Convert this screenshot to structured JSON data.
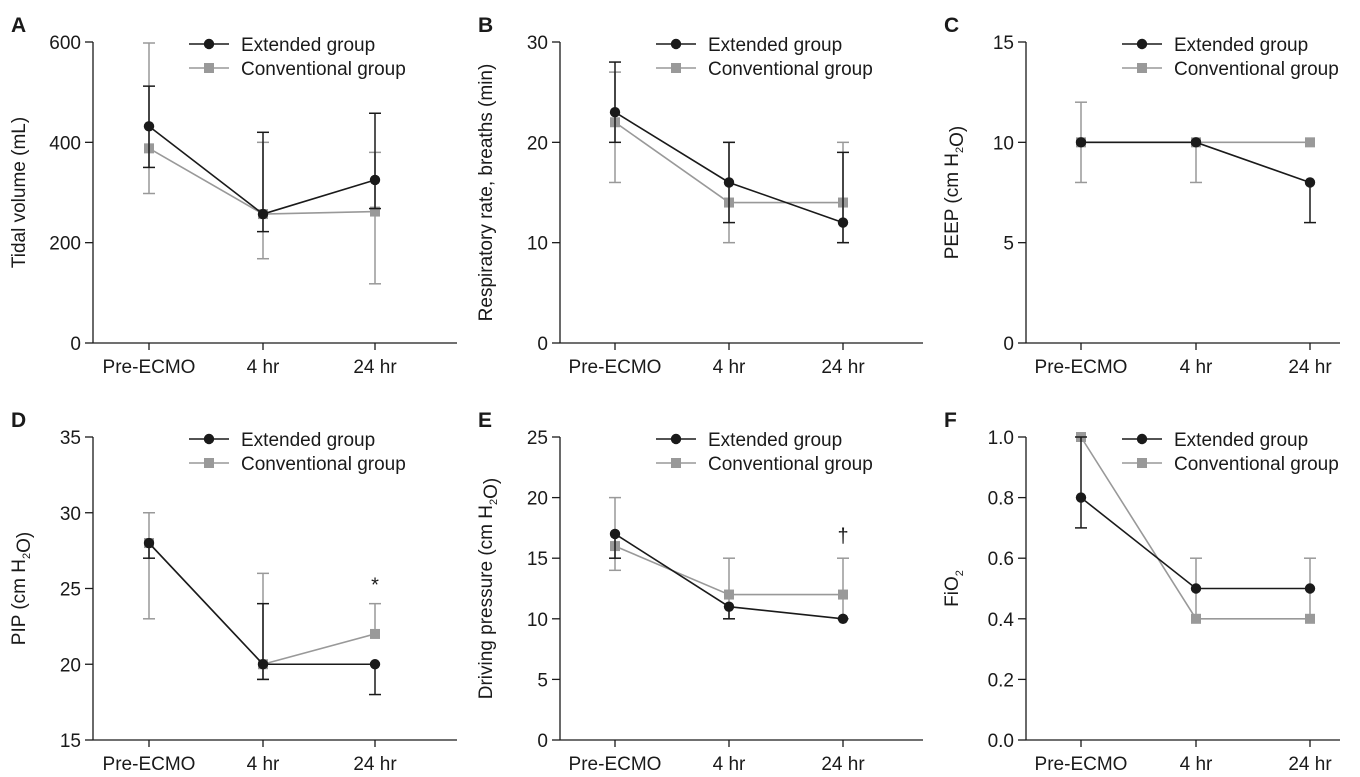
{
  "colors": {
    "extended": "#1a1a1a",
    "conventional": "#999999",
    "axis": "#1a1a1a"
  },
  "categories": [
    "Pre-ECMO",
    "4 hr",
    "24 hr"
  ],
  "legend": {
    "extended": "Extended group",
    "conventional": "Conventional group"
  },
  "chart_data": [
    {
      "type": "line",
      "panel": "A",
      "ylabel": "Tidal volume (mL)",
      "ylim": [
        0,
        600
      ],
      "yticks": [
        "0",
        "200",
        "400",
        "600"
      ],
      "categories": [
        "Pre-ECMO",
        "4 hr",
        "24 hr"
      ],
      "series": [
        {
          "name": "Extended group",
          "values": [
            432,
            257,
            325
          ],
          "err_low": [
            350,
            222,
            268
          ],
          "err_high": [
            512,
            420,
            458
          ]
        },
        {
          "name": "Conventional group",
          "values": [
            388,
            257,
            262
          ],
          "err_low": [
            298,
            168,
            118
          ],
          "err_high": [
            598,
            400,
            380
          ]
        }
      ],
      "annotations": []
    },
    {
      "type": "line",
      "panel": "B",
      "ylabel": "Respiratory rate, breaths (min)",
      "ylim": [
        0,
        30
      ],
      "yticks": [
        "0",
        "10",
        "20",
        "30"
      ],
      "categories": [
        "Pre-ECMO",
        "4 hr",
        "24 hr"
      ],
      "series": [
        {
          "name": "Extended group",
          "values": [
            23,
            16,
            12
          ],
          "err_low": [
            20,
            12,
            10
          ],
          "err_high": [
            28,
            20,
            19
          ]
        },
        {
          "name": "Conventional group",
          "values": [
            22,
            14,
            14
          ],
          "err_low": [
            16,
            10,
            10
          ],
          "err_high": [
            27,
            20,
            20
          ]
        }
      ],
      "annotations": []
    },
    {
      "type": "line",
      "panel": "C",
      "ylabel": "PEEP (cm H2O)",
      "ylim": [
        0,
        15
      ],
      "yticks": [
        "0",
        "5",
        "10",
        "15"
      ],
      "categories": [
        "Pre-ECMO",
        "4 hr",
        "24 hr"
      ],
      "series": [
        {
          "name": "Extended group",
          "values": [
            10,
            10,
            8
          ],
          "err_low": [
            10,
            10,
            6
          ],
          "err_high": [
            10,
            10,
            8
          ]
        },
        {
          "name": "Conventional group",
          "values": [
            10,
            10,
            10
          ],
          "err_low": [
            8,
            8,
            10
          ],
          "err_high": [
            12,
            10,
            10
          ]
        }
      ],
      "annotations": []
    },
    {
      "type": "line",
      "panel": "D",
      "ylabel": "PIP (cm H2O)",
      "ylim": [
        15,
        35
      ],
      "yticks": [
        "15",
        "20",
        "25",
        "30",
        "35"
      ],
      "categories": [
        "Pre-ECMO",
        "4 hr",
        "24 hr"
      ],
      "series": [
        {
          "name": "Extended group",
          "values": [
            28,
            20,
            20
          ],
          "err_low": [
            27,
            19,
            18
          ],
          "err_high": [
            28,
            24,
            20
          ]
        },
        {
          "name": "Conventional group",
          "values": [
            28,
            20,
            22
          ],
          "err_low": [
            23,
            19,
            22
          ],
          "err_high": [
            30,
            26,
            24
          ]
        }
      ],
      "annotations": [
        {
          "text": "*",
          "x": "24 hr",
          "y": 24.8
        }
      ]
    },
    {
      "type": "line",
      "panel": "E",
      "ylabel": "Driving pressure (cm H2O)",
      "ylim": [
        0,
        25
      ],
      "yticks": [
        "0",
        "5",
        "10",
        "15",
        "20",
        "25"
      ],
      "categories": [
        "Pre-ECMO",
        "4 hr",
        "24 hr"
      ],
      "series": [
        {
          "name": "Extended group",
          "values": [
            17,
            11,
            10
          ],
          "err_low": [
            15,
            10,
            10
          ],
          "err_high": [
            17,
            11,
            10
          ]
        },
        {
          "name": "Conventional group",
          "values": [
            16,
            12,
            12
          ],
          "err_low": [
            14,
            10,
            10
          ],
          "err_high": [
            20,
            15,
            15
          ]
        }
      ],
      "annotations": [
        {
          "text": "†",
          "x": "24 hr",
          "y": 16.3
        }
      ]
    },
    {
      "type": "line",
      "panel": "F",
      "ylabel": "FiO2",
      "ylim": [
        0,
        1
      ],
      "yticks": [
        "0.0",
        "0.2",
        "0.4",
        "0.6",
        "0.8",
        "1.0"
      ],
      "categories": [
        "Pre-ECMO",
        "4 hr",
        "24 hr"
      ],
      "series": [
        {
          "name": "Extended group",
          "values": [
            0.8,
            0.5,
            0.5
          ],
          "err_low": [
            0.7,
            0.5,
            0.5
          ],
          "err_high": [
            1.0,
            0.5,
            0.5
          ]
        },
        {
          "name": "Conventional group",
          "values": [
            1.0,
            0.4,
            0.4
          ],
          "err_low": [
            1.0,
            0.4,
            0.4
          ],
          "err_high": [
            1.0,
            0.6,
            0.6
          ]
        }
      ],
      "annotations": []
    }
  ]
}
